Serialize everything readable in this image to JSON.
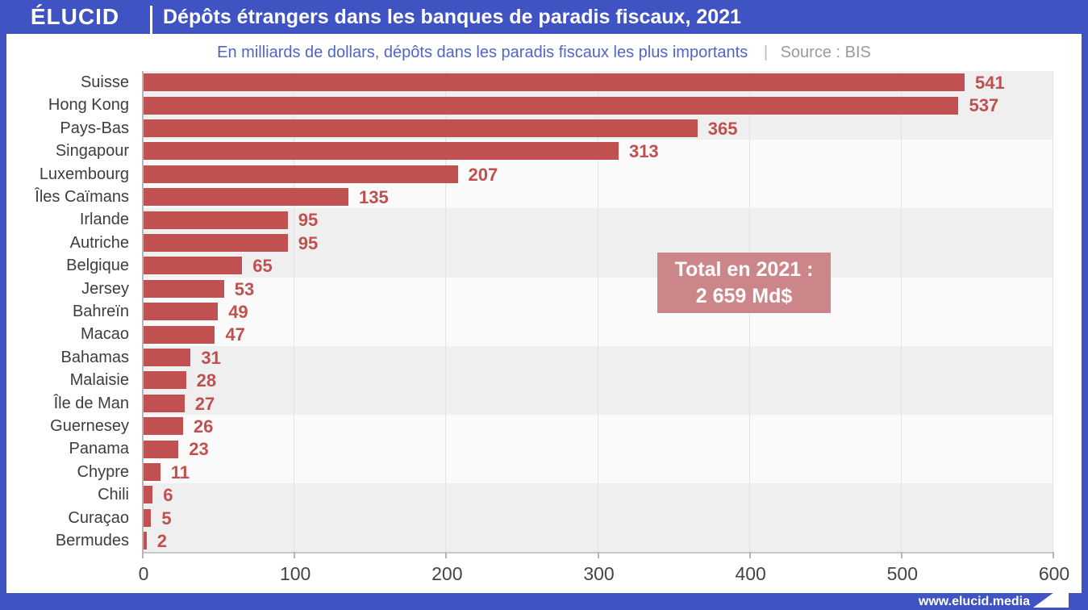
{
  "header": {
    "logo": "ÉLUCID",
    "title": "Dépôts étrangers dans les banques de paradis fiscaux, 2021"
  },
  "subtitle": {
    "text": "En milliards de dollars, dépôts dans les paradis fiscaux les plus importants",
    "separator": "|",
    "source": "Source : BIS"
  },
  "annotation": {
    "line1": "Total en 2021 :",
    "line2": "2 659 Md$"
  },
  "footer": {
    "url": "www.elucid.media",
    "icon": "elucid-arrow-icon"
  },
  "colors": {
    "brand_blue": "#4053c3",
    "bar_red": "#c05150",
    "value_label_red": "#c0504f",
    "annotation_bg": "#cc8689",
    "subtitle_blue": "#5065c8",
    "source_gray": "#9b9b9b",
    "band_gray": "#efefef",
    "band_light": "#fafafa",
    "gridline_gray": "#e3e3e3"
  },
  "chart_data": {
    "type": "bar",
    "orientation": "horizontal",
    "title": "Dépôts étrangers dans les banques de paradis fiscaux, 2021",
    "subtitle": "En milliards de dollars, dépôts dans les paradis fiscaux les plus importants",
    "source": "Source : BIS",
    "unit": "milliards de dollars (Md$)",
    "categories": [
      "Suisse",
      "Hong Kong",
      "Pays-Bas",
      "Singapour",
      "Luxembourg",
      "Îles Caïmans",
      "Irlande",
      "Autriche",
      "Belgique",
      "Jersey",
      "Bahreïn",
      "Macao",
      "Bahamas",
      "Malaisie",
      "Île de Man",
      "Guernesey",
      "Panama",
      "Chypre",
      "Chili",
      "Curaçao",
      "Bermudes"
    ],
    "values": [
      541,
      537,
      365,
      313,
      207,
      135,
      95,
      95,
      65,
      53,
      49,
      47,
      31,
      28,
      27,
      26,
      23,
      11,
      6,
      5,
      2
    ],
    "xlim": [
      0,
      600
    ],
    "xticks": [
      0,
      100,
      200,
      300,
      400,
      500,
      600
    ],
    "grid": true,
    "value_labels": true,
    "annotation_total": "Total en 2021 : 2 659 Md$",
    "zebra_band_group_size": 3
  }
}
